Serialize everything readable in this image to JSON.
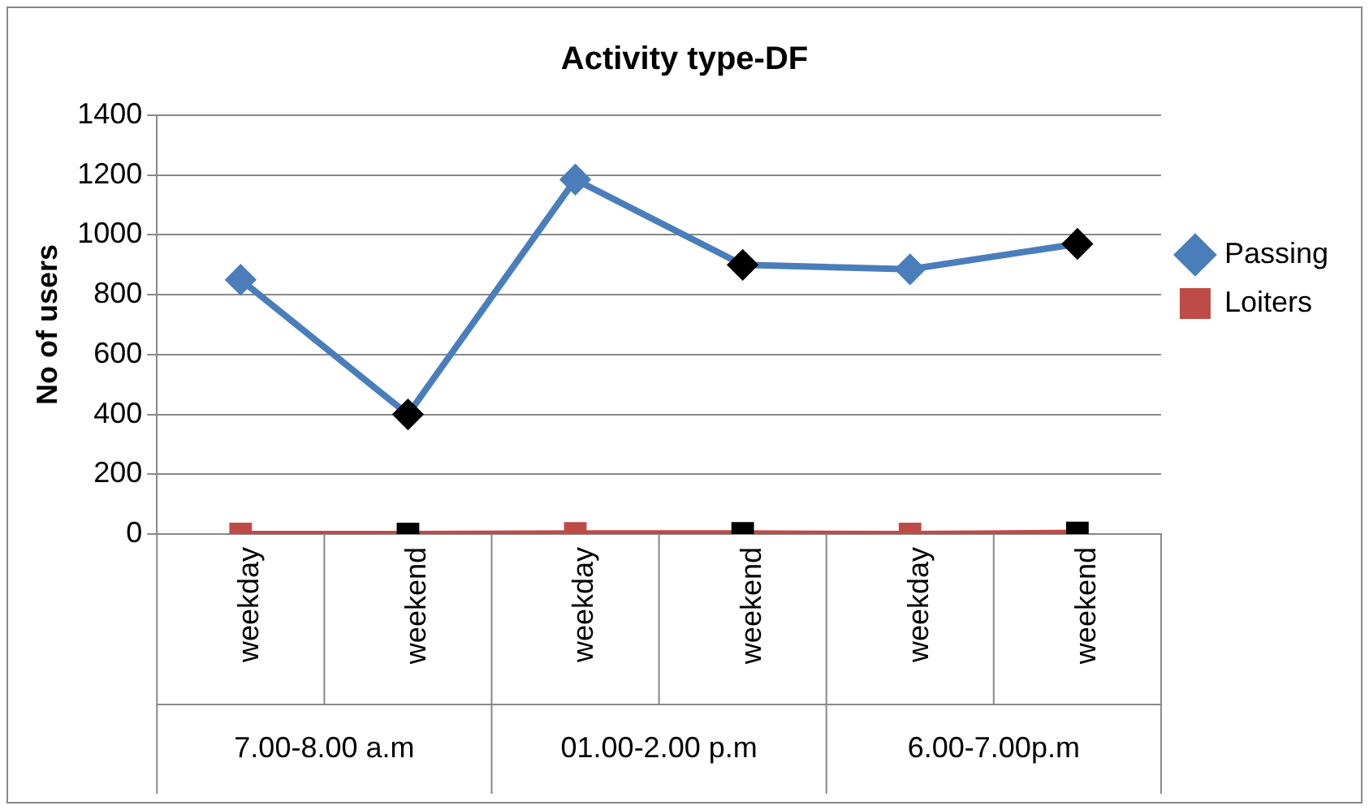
{
  "chart_data": {
    "type": "line",
    "title": "Activity type-DF",
    "ylabel": "No of users",
    "categories": [
      "weekday",
      "weekend",
      "weekday",
      "weekend",
      "weekday",
      "weekend"
    ],
    "annotations": [
      "7.00-8.00 a.m",
      "01.00-2.00 p.m",
      "6.00-7.00p.m"
    ],
    "series": [
      {
        "name": "Passing",
        "color": "#4a7ebb",
        "marker": "diamond",
        "colors": [
          "#4a7ebb",
          "#000000",
          "#4a7ebb",
          "#000000",
          "#4a7ebb",
          "#000000"
        ],
        "values": [
          850,
          400,
          1185,
          900,
          885,
          970
        ]
      },
      {
        "name": "Loiters",
        "color": "#be4b48",
        "marker": "square",
        "colors": [
          "#be4b48",
          "#000000",
          "#be4b48",
          "#000000",
          "#be4b48",
          "#000000"
        ],
        "values": [
          0,
          0,
          2,
          2,
          0,
          4
        ]
      }
    ],
    "ylim": [
      0,
      1400
    ],
    "yticks": [
      0,
      200,
      400,
      600,
      800,
      1000,
      1200,
      1400
    ],
    "grid": "y",
    "legend": "right",
    "line_style": "solid"
  }
}
